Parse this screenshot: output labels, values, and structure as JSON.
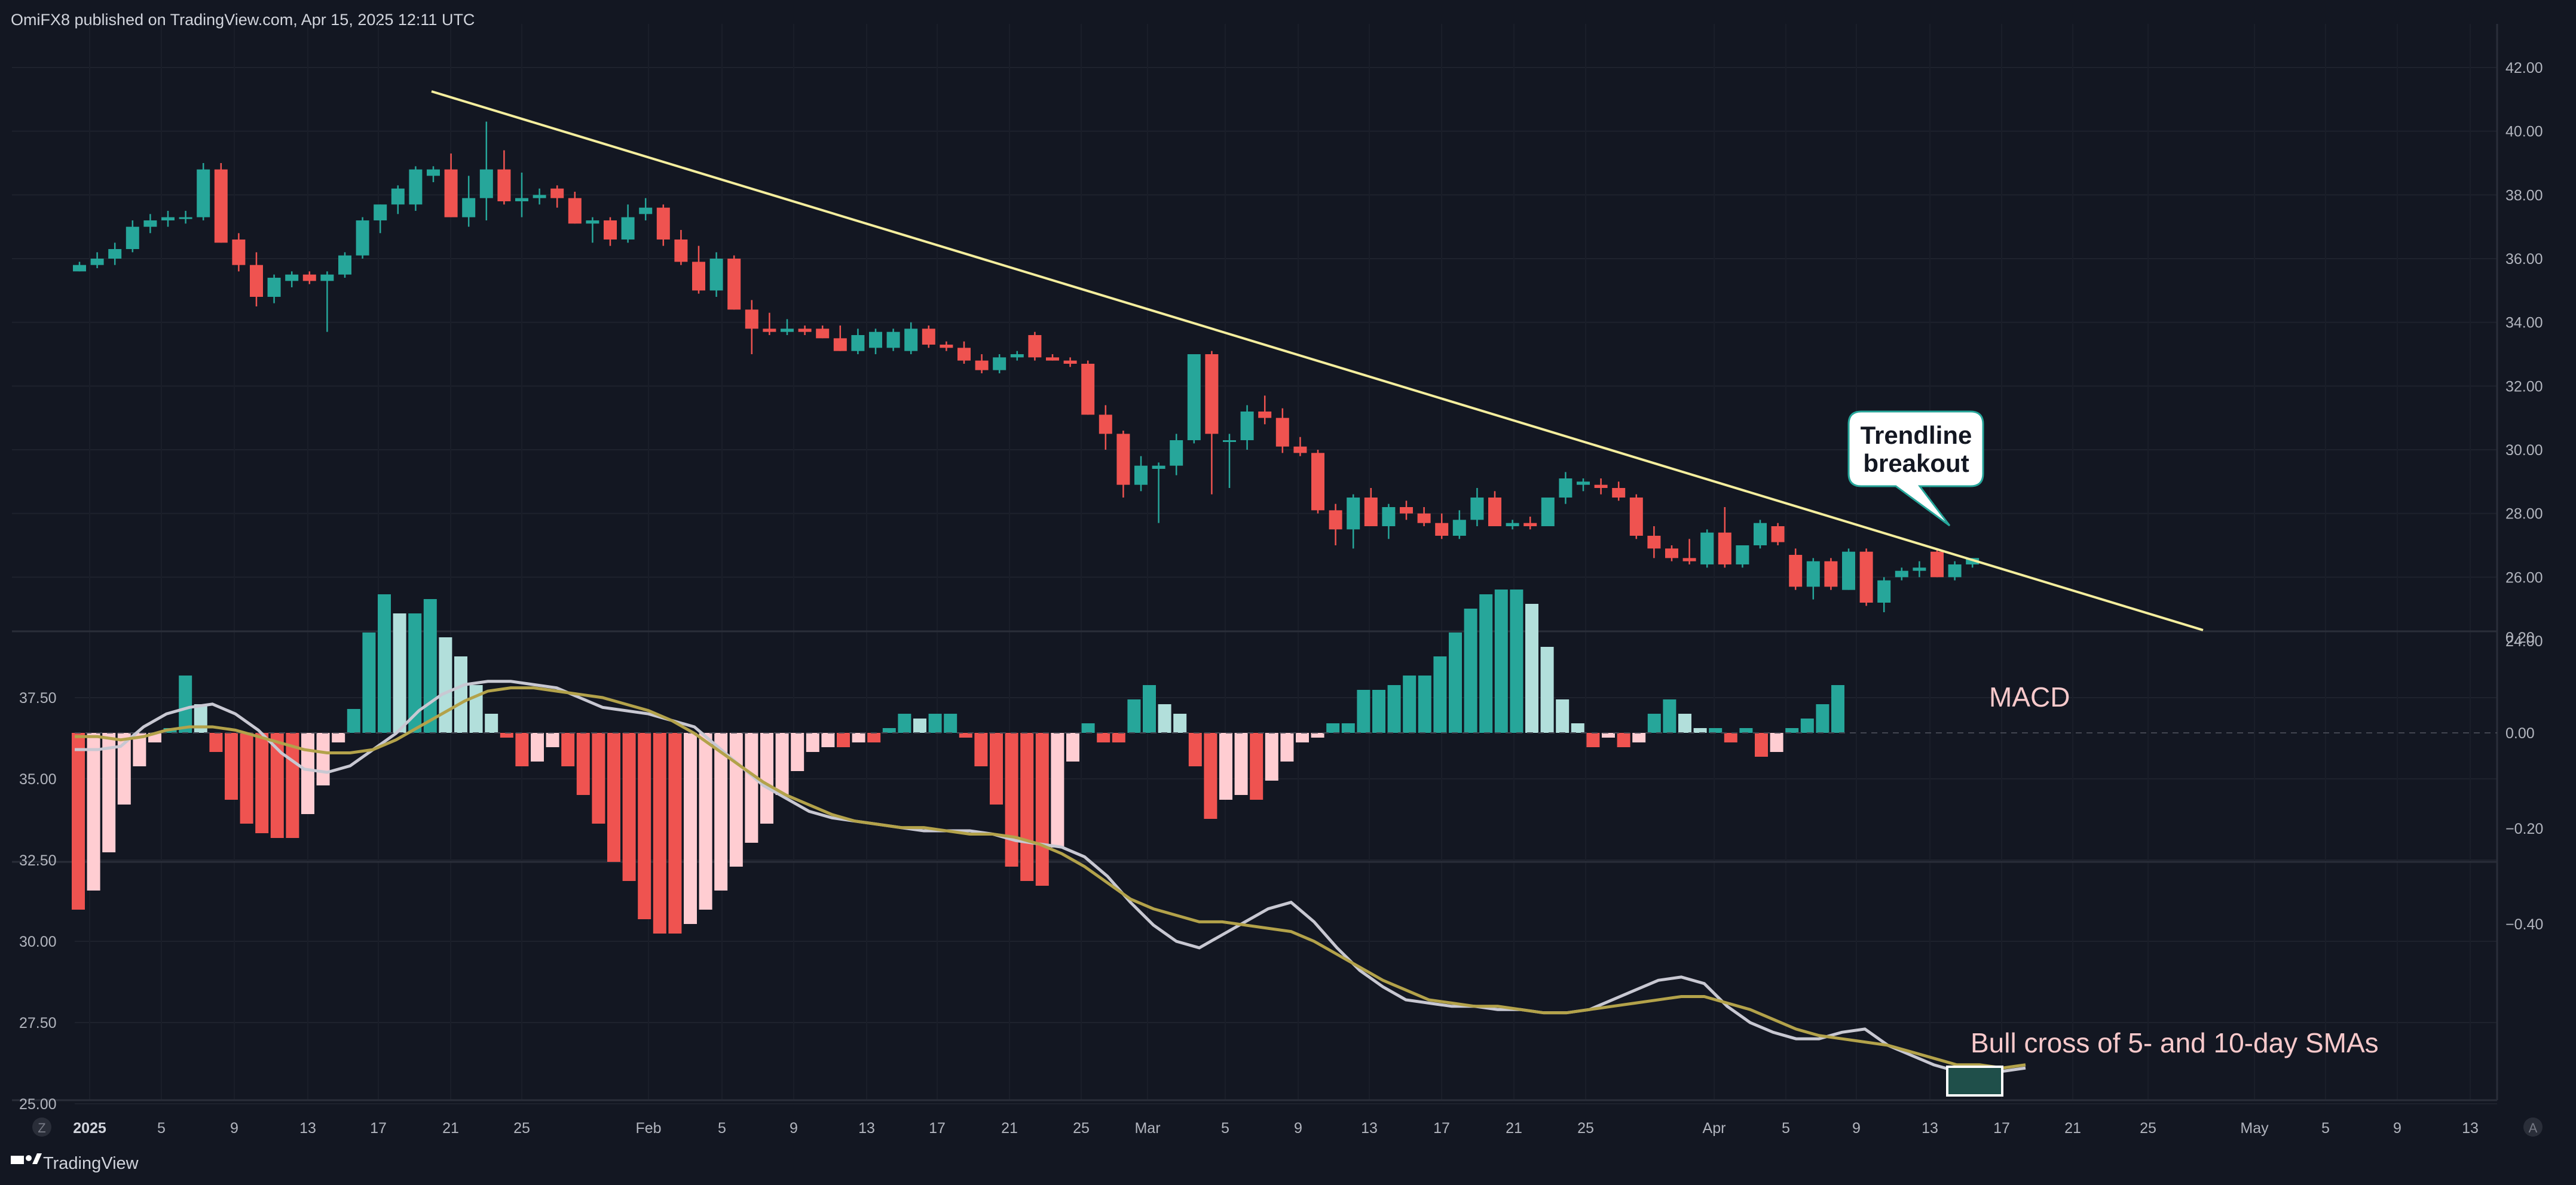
{
  "header": {
    "publisher": "OmiFX8 published on TradingView.com, Apr 15, 2025 12:11 UTC"
  },
  "footer": {
    "brand": "TradingView",
    "left_icon": "Z",
    "right_icon": "A"
  },
  "colors": {
    "background": "#131722",
    "up": "#26a69a",
    "down": "#ef5350",
    "hist_up_light": "#b2dfdb",
    "hist_down_light": "#ffcdd2",
    "trendline": "#f5ee9e",
    "sma5": "#c8c8d2",
    "sma10": "#b3a24a",
    "annotation_text": "#f8c9cb"
  },
  "annotations": {
    "breakout_line1": "Trendline",
    "breakout_line2": "breakout",
    "macd": "MACD",
    "bull_cross": "Bull cross of 5- and 10-day SMAs"
  },
  "chart_data": [
    {
      "type": "candlestick",
      "name": "price",
      "ylim": [
        23,
        42
      ],
      "ytick_labels": [
        "42.00",
        "40.00",
        "38.00",
        "36.00",
        "34.00",
        "32.00",
        "30.00",
        "28.00",
        "26.00",
        "24.00"
      ],
      "xtick_labels": [
        "2025",
        "5",
        "9",
        "13",
        "17",
        "21",
        "25",
        "Feb",
        "5",
        "9",
        "13",
        "17",
        "21",
        "25",
        "Mar",
        "5",
        "9",
        "13",
        "17",
        "21",
        "25",
        "Apr",
        "5",
        "9",
        "13",
        "17",
        "21",
        "25",
        "May",
        "5",
        "9",
        "13"
      ],
      "candles": [
        [
          35.6,
          35.9,
          35.6,
          35.8
        ],
        [
          35.8,
          36.2,
          35.7,
          36.0
        ],
        [
          36.0,
          36.5,
          35.8,
          36.3
        ],
        [
          36.3,
          37.2,
          36.2,
          37.0
        ],
        [
          37.0,
          37.4,
          36.8,
          37.2
        ],
        [
          37.2,
          37.5,
          37.0,
          37.3
        ],
        [
          37.3,
          37.5,
          37.1,
          37.3
        ],
        [
          37.3,
          39.0,
          37.2,
          38.8
        ],
        [
          38.8,
          39.0,
          36.5,
          36.5
        ],
        [
          36.6,
          36.8,
          35.6,
          35.8
        ],
        [
          35.8,
          36.2,
          34.5,
          34.8
        ],
        [
          34.8,
          35.5,
          34.6,
          35.4
        ],
        [
          35.3,
          35.6,
          35.1,
          35.5
        ],
        [
          35.5,
          35.6,
          35.2,
          35.3
        ],
        [
          35.3,
          35.6,
          33.7,
          35.5
        ],
        [
          35.5,
          36.2,
          35.4,
          36.1
        ],
        [
          36.1,
          37.3,
          36.0,
          37.2
        ],
        [
          37.2,
          37.7,
          36.8,
          37.7
        ],
        [
          37.7,
          38.3,
          37.4,
          38.2
        ],
        [
          37.7,
          38.9,
          37.5,
          38.8
        ],
        [
          38.6,
          38.9,
          38.4,
          38.8
        ],
        [
          38.8,
          39.3,
          37.3,
          37.3
        ],
        [
          37.3,
          38.6,
          37.0,
          37.9
        ],
        [
          37.9,
          40.3,
          37.2,
          38.8
        ],
        [
          38.8,
          39.4,
          37.7,
          37.8
        ],
        [
          37.8,
          38.7,
          37.3,
          37.9
        ],
        [
          37.9,
          38.2,
          37.7,
          38.0
        ],
        [
          38.2,
          38.3,
          37.6,
          37.9
        ],
        [
          37.9,
          38.1,
          37.1,
          37.1
        ],
        [
          37.1,
          37.3,
          36.5,
          37.2
        ],
        [
          37.2,
          37.3,
          36.4,
          36.6
        ],
        [
          36.6,
          37.7,
          36.5,
          37.3
        ],
        [
          37.4,
          37.9,
          37.2,
          37.6
        ],
        [
          37.6,
          37.7,
          36.4,
          36.6
        ],
        [
          36.6,
          36.9,
          35.8,
          35.9
        ],
        [
          35.9,
          36.4,
          34.9,
          35.0
        ],
        [
          35.0,
          36.2,
          34.8,
          36.0
        ],
        [
          36.0,
          36.1,
          34.4,
          34.4
        ],
        [
          34.4,
          34.7,
          33.0,
          33.8
        ],
        [
          33.8,
          34.3,
          33.6,
          33.7
        ],
        [
          33.7,
          34.1,
          33.6,
          33.8
        ],
        [
          33.8,
          33.9,
          33.6,
          33.7
        ],
        [
          33.8,
          33.9,
          33.5,
          33.5
        ],
        [
          33.5,
          33.9,
          33.1,
          33.1
        ],
        [
          33.1,
          33.8,
          33.0,
          33.6
        ],
        [
          33.2,
          33.8,
          33.0,
          33.7
        ],
        [
          33.2,
          33.8,
          33.1,
          33.7
        ],
        [
          33.1,
          34.0,
          33.0,
          33.8
        ],
        [
          33.8,
          33.9,
          33.2,
          33.3
        ],
        [
          33.3,
          33.4,
          33.1,
          33.2
        ],
        [
          33.2,
          33.4,
          32.7,
          32.8
        ],
        [
          32.8,
          33.0,
          32.4,
          32.5
        ],
        [
          32.5,
          33.0,
          32.4,
          32.9
        ],
        [
          32.9,
          33.1,
          32.8,
          33.0
        ],
        [
          33.6,
          33.7,
          32.8,
          32.9
        ],
        [
          32.9,
          33.0,
          32.8,
          32.8
        ],
        [
          32.8,
          32.9,
          32.6,
          32.7
        ],
        [
          32.7,
          32.8,
          31.1,
          31.1
        ],
        [
          31.1,
          31.4,
          30.0,
          30.5
        ],
        [
          30.5,
          30.6,
          28.5,
          28.9
        ],
        [
          28.9,
          29.8,
          28.7,
          29.5
        ],
        [
          29.4,
          29.6,
          27.7,
          29.5
        ],
        [
          29.5,
          30.5,
          29.2,
          30.3
        ],
        [
          30.3,
          33.0,
          30.2,
          33.0
        ],
        [
          33.0,
          33.1,
          28.6,
          30.5
        ],
        [
          30.3,
          30.5,
          28.8,
          30.3
        ],
        [
          30.3,
          31.4,
          30.0,
          31.2
        ],
        [
          31.2,
          31.7,
          30.8,
          31.0
        ],
        [
          31.0,
          31.3,
          29.9,
          30.1
        ],
        [
          30.1,
          30.4,
          29.8,
          29.9
        ],
        [
          29.9,
          30.0,
          28.0,
          28.1
        ],
        [
          28.1,
          28.3,
          27.0,
          27.5
        ],
        [
          27.5,
          28.6,
          26.9,
          28.5
        ],
        [
          28.5,
          28.8,
          27.6,
          27.6
        ],
        [
          27.6,
          28.3,
          27.2,
          28.2
        ],
        [
          28.2,
          28.4,
          27.8,
          28.0
        ],
        [
          28.0,
          28.2,
          27.6,
          27.7
        ],
        [
          27.7,
          28.0,
          27.2,
          27.3
        ],
        [
          27.3,
          28.1,
          27.2,
          27.8
        ],
        [
          27.8,
          28.8,
          27.6,
          28.5
        ],
        [
          28.5,
          28.7,
          27.6,
          27.6
        ],
        [
          27.6,
          27.8,
          27.5,
          27.7
        ],
        [
          27.7,
          27.9,
          27.5,
          27.6
        ],
        [
          27.6,
          28.5,
          27.6,
          28.5
        ],
        [
          28.5,
          29.3,
          28.3,
          29.1
        ],
        [
          28.9,
          29.1,
          28.7,
          29.0
        ],
        [
          28.9,
          29.1,
          28.6,
          28.8
        ],
        [
          28.8,
          29.0,
          28.4,
          28.5
        ],
        [
          28.5,
          28.6,
          27.2,
          27.3
        ],
        [
          27.3,
          27.6,
          26.6,
          26.9
        ],
        [
          26.9,
          27.0,
          26.5,
          26.6
        ],
        [
          26.6,
          27.2,
          26.4,
          26.5
        ],
        [
          26.4,
          27.5,
          26.3,
          27.4
        ],
        [
          27.4,
          28.2,
          26.3,
          26.4
        ],
        [
          26.4,
          27.0,
          26.3,
          27.0
        ],
        [
          27.0,
          27.8,
          26.9,
          27.7
        ],
        [
          27.6,
          27.7,
          27.0,
          27.1
        ],
        [
          26.7,
          26.9,
          25.6,
          25.7
        ],
        [
          25.7,
          26.6,
          25.3,
          26.5
        ],
        [
          26.5,
          26.6,
          25.6,
          25.7
        ],
        [
          25.6,
          26.9,
          25.6,
          26.8
        ],
        [
          26.8,
          26.9,
          25.1,
          25.2
        ],
        [
          25.2,
          26.0,
          24.9,
          25.9
        ],
        [
          26.0,
          26.3,
          25.9,
          26.2
        ],
        [
          26.2,
          26.5,
          26.0,
          26.3
        ],
        [
          26.8,
          26.9,
          26.0,
          26.0
        ],
        [
          26.0,
          26.5,
          25.9,
          26.4
        ],
        [
          26.4,
          26.6,
          26.3,
          26.6
        ]
      ]
    },
    {
      "type": "bar",
      "name": "MACD",
      "ylim": [
        -0.5,
        0.45
      ],
      "ytick_labels": [
        "0.20",
        "0.00",
        "−0.20",
        "−0.40"
      ],
      "values": [
        -0.37,
        -0.33,
        -0.25,
        -0.15,
        -0.07,
        -0.02,
        0.01,
        0.12,
        0.06,
        -0.04,
        -0.14,
        -0.19,
        -0.21,
        -0.22,
        -0.22,
        -0.17,
        -0.11,
        -0.02,
        0.05,
        0.21,
        0.29,
        0.25,
        0.25,
        0.28,
        0.2,
        0.16,
        0.1,
        0.04,
        -0.01,
        -0.07,
        -0.06,
        -0.03,
        -0.07,
        -0.13,
        -0.19,
        -0.27,
        -0.31,
        -0.39,
        -0.42,
        -0.42,
        -0.4,
        -0.37,
        -0.33,
        -0.28,
        -0.23,
        -0.19,
        -0.13,
        -0.08,
        -0.04,
        -0.03,
        -0.03,
        -0.02,
        -0.02,
        0.01,
        0.04,
        0.03,
        0.04,
        0.04,
        -0.01,
        -0.07,
        -0.15,
        -0.28,
        -0.31,
        -0.32,
        -0.24,
        -0.06,
        0.02,
        -0.02,
        -0.02,
        0.07,
        0.1,
        0.06,
        0.04,
        -0.07,
        -0.18,
        -0.14,
        -0.13,
        -0.14,
        -0.1,
        -0.06,
        -0.02,
        -0.01,
        0.02,
        0.02,
        0.09,
        0.09,
        0.1,
        0.12,
        0.12,
        0.16,
        0.21,
        0.26,
        0.29,
        0.3,
        0.3,
        0.27,
        0.18,
        0.07,
        0.02,
        -0.03,
        -0.01,
        -0.03,
        -0.02,
        0.04,
        0.07,
        0.04,
        0.01,
        0.01,
        -0.02,
        0.01,
        -0.05,
        -0.04,
        0.01,
        0.03,
        0.06,
        0.1
      ]
    },
    {
      "type": "line",
      "name": "SMA",
      "ylim": [
        24.2,
        38.8
      ],
      "ytick_labels": [
        "37.50",
        "35.00",
        "32.50",
        "30.00",
        "27.50",
        "25.00"
      ],
      "series": [
        {
          "values": [
            35.9,
            35.9,
            36.0,
            36.6,
            37.0,
            37.2,
            37.3,
            37.0,
            36.5,
            35.8,
            35.3,
            35.2,
            35.4,
            35.9,
            36.4,
            37.1,
            37.6,
            37.9,
            38.0,
            38.0,
            37.9,
            37.8,
            37.5,
            37.2,
            37.1,
            37.0,
            36.8,
            36.6,
            36.0,
            35.4,
            34.8,
            34.4,
            34.0,
            33.8,
            33.7,
            33.6,
            33.5,
            33.4,
            33.4,
            33.4,
            33.3,
            33.1,
            33.0,
            32.9,
            32.6,
            32.0,
            31.2,
            30.5,
            30.0,
            29.8,
            30.2,
            30.6,
            31.0,
            31.2,
            30.6,
            29.8,
            29.1,
            28.6,
            28.2,
            28.1,
            28.0,
            28.0,
            27.9,
            27.9,
            27.8,
            27.8,
            27.9,
            28.2,
            28.5,
            28.8,
            28.9,
            28.7,
            28.0,
            27.5,
            27.2,
            27.0,
            27.0,
            27.2,
            27.3,
            26.8,
            26.5,
            26.2,
            26.0,
            26.0,
            26.0,
            26.1
          ],
          "color_key": "sma5"
        },
        {
          "values": [
            36.3,
            36.3,
            36.2,
            36.3,
            36.5,
            36.6,
            36.6,
            36.5,
            36.3,
            36.1,
            35.9,
            35.8,
            35.8,
            35.9,
            36.2,
            36.6,
            37.0,
            37.4,
            37.7,
            37.8,
            37.8,
            37.7,
            37.6,
            37.5,
            37.3,
            37.1,
            36.8,
            36.4,
            35.9,
            35.4,
            34.9,
            34.5,
            34.2,
            33.9,
            33.7,
            33.6,
            33.5,
            33.5,
            33.4,
            33.3,
            33.3,
            33.2,
            33.0,
            32.7,
            32.3,
            31.8,
            31.3,
            31.0,
            30.8,
            30.6,
            30.6,
            30.5,
            30.4,
            30.3,
            30.0,
            29.6,
            29.2,
            28.8,
            28.5,
            28.2,
            28.1,
            28.0,
            28.0,
            27.9,
            27.8,
            27.8,
            27.9,
            28.0,
            28.1,
            28.2,
            28.3,
            28.3,
            28.1,
            27.9,
            27.6,
            27.3,
            27.1,
            27.0,
            26.9,
            26.8,
            26.6,
            26.4,
            26.2,
            26.2,
            26.1,
            26.2
          ],
          "color_key": "sma10"
        }
      ]
    }
  ]
}
